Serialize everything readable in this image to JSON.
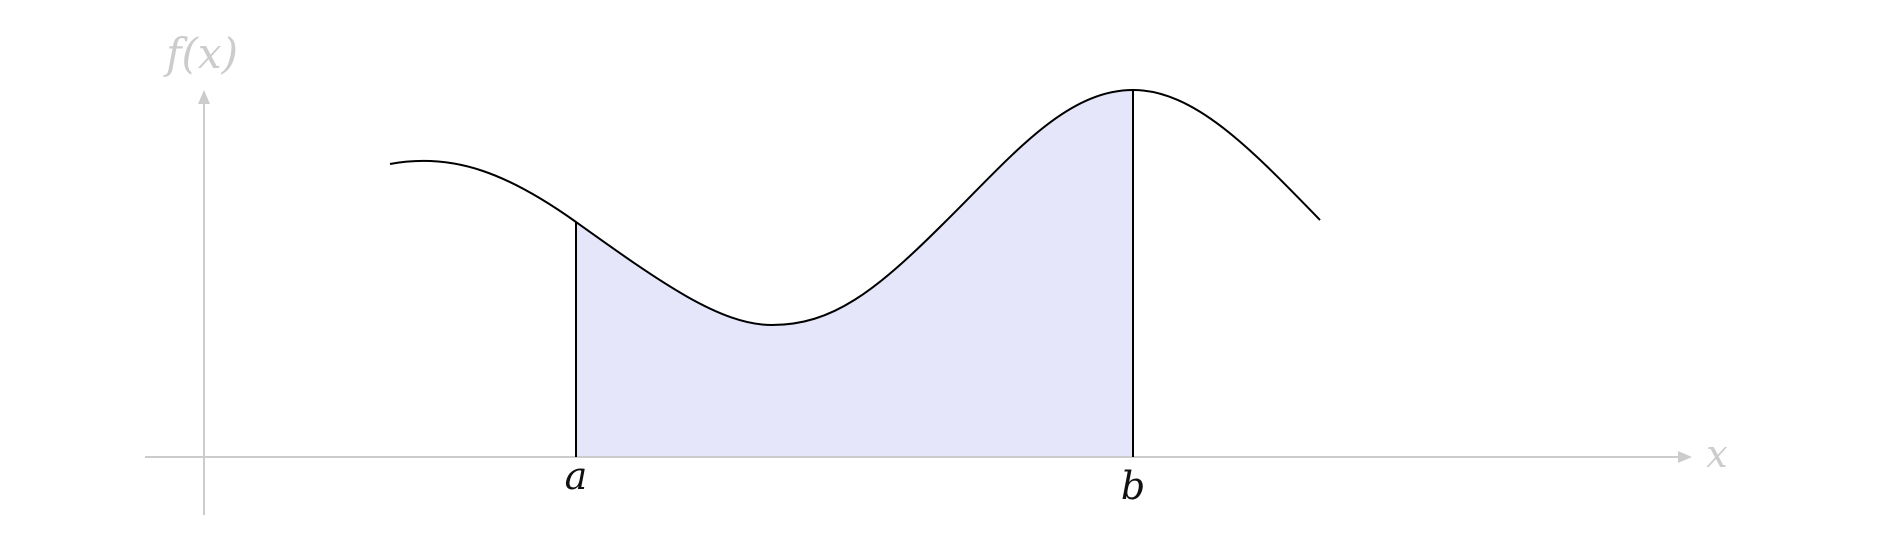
{
  "labels": {
    "y_axis": "f(x)",
    "x_axis": "x",
    "lower_bound": "a",
    "upper_bound": "b"
  },
  "colors": {
    "axis": "#cccccc",
    "curve": "#000000",
    "fill": "#e6e6fa",
    "label": "#111111"
  },
  "icons": {
    "x_axis_end": "arrowhead-right-icon",
    "y_axis_end": "arrowhead-up-icon"
  }
}
